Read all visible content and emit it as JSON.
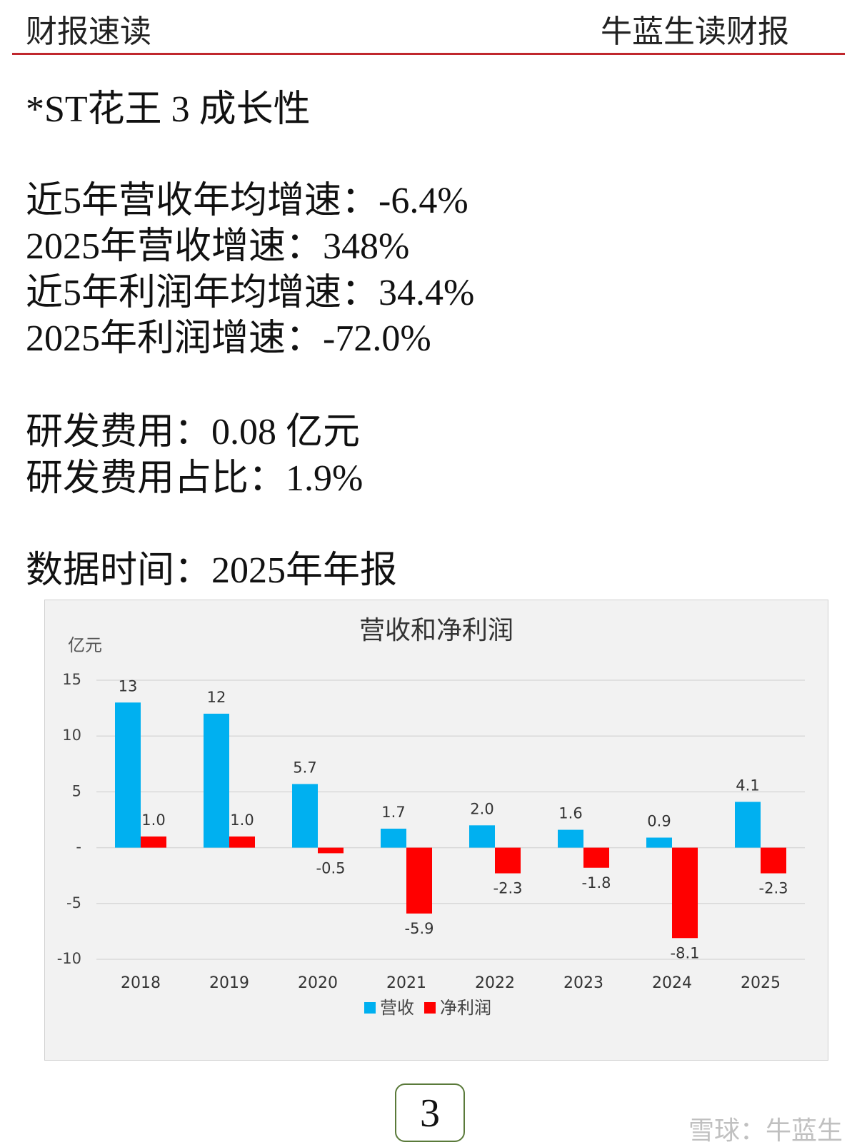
{
  "header": {
    "left": "财报速读",
    "right": "牛蓝生读财报"
  },
  "heading": "*ST花王 3 成长性",
  "growth": [
    "近5年营收年均增速：-6.4%",
    "2025年营收增速：348%",
    "近5年利润年均增速：34.4%",
    "2025年利润增速：-72.0%"
  ],
  "rnd": [
    "研发费用：0.08 亿元",
    "研发费用占比：1.9%"
  ],
  "data_time": "数据时间：2025年年报",
  "chart_data": {
    "type": "bar",
    "title": "营收和净利润",
    "y_unit": "亿元",
    "categories": [
      "2018",
      "2019",
      "2020",
      "2021",
      "2022",
      "2023",
      "2024",
      "2025"
    ],
    "series": [
      {
        "name": "营收",
        "color": "#00b0f0",
        "values": [
          13,
          12,
          5.7,
          1.7,
          2.0,
          1.6,
          0.9,
          4.1
        ],
        "value_labels": [
          "13",
          "12",
          "5.7",
          "1.7",
          "2.0",
          "1.6",
          "0.9",
          "4.1"
        ]
      },
      {
        "name": "净利润",
        "color": "#ff0000",
        "values": [
          1.0,
          1.0,
          -0.5,
          -5.9,
          -2.3,
          -1.8,
          -8.1,
          -2.3
        ],
        "value_labels": [
          "1.0",
          "1.0",
          "-0.5",
          "-5.9",
          "-2.3",
          "-1.8",
          "-8.1",
          "-2.3"
        ]
      }
    ],
    "ylim": [
      -10,
      15
    ],
    "yticks": [
      15,
      10,
      5,
      {
        "value": 0,
        "label": "-"
      },
      -5,
      -10
    ],
    "grid": true,
    "legend": "bottom"
  },
  "page_number": "3",
  "watermark": "雪球：牛蓝生"
}
